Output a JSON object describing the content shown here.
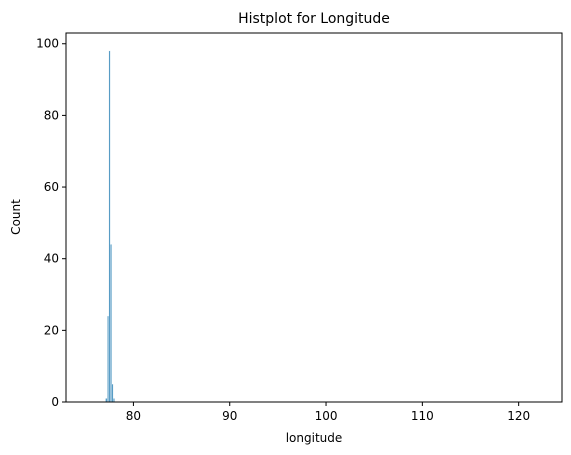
{
  "chart_data": {
    "type": "bar",
    "title": "Histplot for Longitude",
    "xlabel": "longitude",
    "ylabel": "Count",
    "xlim": [
      73,
      124.5
    ],
    "ylim": [
      0,
      103
    ],
    "xticks": [
      80,
      90,
      100,
      110,
      120
    ],
    "yticks": [
      0,
      20,
      40,
      60,
      80,
      100
    ],
    "bar_color": "#3a8bbb",
    "bins": [
      {
        "x0": 77.1,
        "x1": 77.3,
        "count": 1
      },
      {
        "x0": 77.3,
        "x1": 77.45,
        "count": 24
      },
      {
        "x0": 77.45,
        "x1": 77.6,
        "count": 98
      },
      {
        "x0": 77.6,
        "x1": 77.75,
        "count": 44
      },
      {
        "x0": 77.75,
        "x1": 77.9,
        "count": 5
      },
      {
        "x0": 77.9,
        "x1": 78.05,
        "count": 1
      }
    ],
    "grid": false,
    "legend": "none"
  }
}
